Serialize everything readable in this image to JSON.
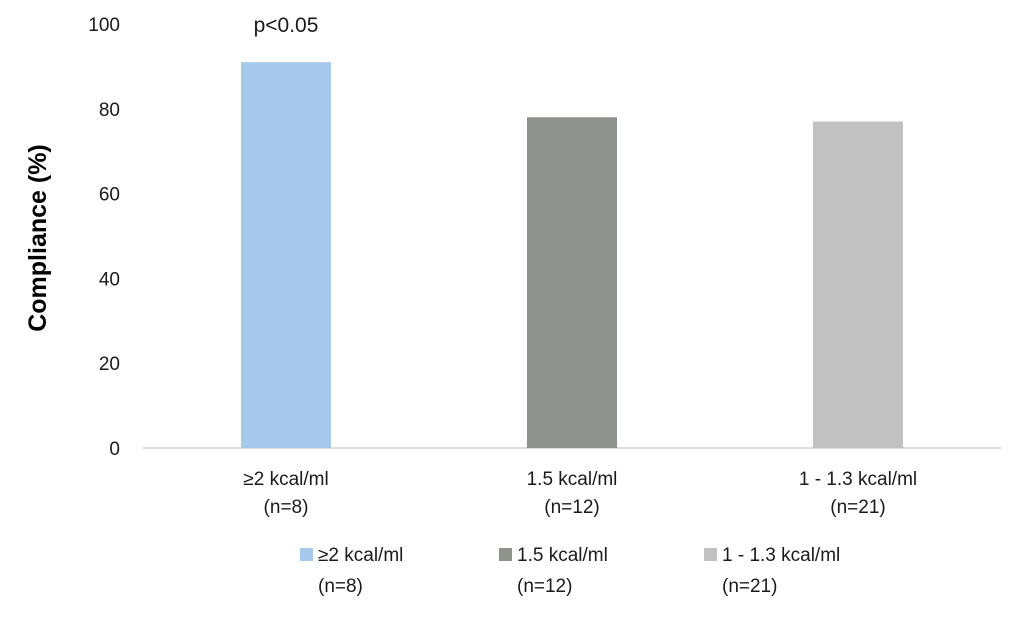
{
  "chart_data": {
    "type": "bar",
    "title": "",
    "xlabel": "",
    "ylabel": "Compliance (%)",
    "ylim": [
      0,
      100
    ],
    "yticks": [
      0,
      20,
      40,
      60,
      80,
      100
    ],
    "grid": false,
    "legend_position": "bottom",
    "categories": [
      {
        "line1": "≥2 kcal/ml",
        "line2": "(n=8)"
      },
      {
        "line1": "1.5 kcal/ml",
        "line2": "(n=12)"
      },
      {
        "line1": "1 - 1.3 kcal/ml",
        "line2": "(n=21)"
      }
    ],
    "values": [
      91,
      78,
      77
    ],
    "colors": [
      "#a6c8ea",
      "#8f918c",
      "#c1c1c1"
    ],
    "annotation": "p<0.05",
    "legend": [
      {
        "line1": "≥2 kcal/ml",
        "line2": "(n=8)",
        "color": "#a6c8ea"
      },
      {
        "line1": "1.5 kcal/ml",
        "line2": "(n=12)",
        "color": "#8f918c"
      },
      {
        "line1": "1 - 1.3 kcal/ml",
        "line2": "(n=21)",
        "color": "#c1c1c1"
      }
    ]
  }
}
